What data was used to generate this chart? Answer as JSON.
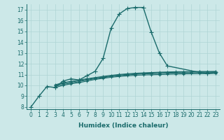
{
  "xlabel": "Humidex (Indice chaleur)",
  "bg_color": "#cce8e8",
  "line_color": "#1a6b6b",
  "xlim": [
    -0.5,
    23.5
  ],
  "ylim": [
    7.8,
    17.5
  ],
  "yticks": [
    8,
    9,
    10,
    11,
    12,
    13,
    14,
    15,
    16,
    17
  ],
  "xticks": [
    0,
    1,
    2,
    3,
    4,
    5,
    6,
    7,
    8,
    9,
    10,
    11,
    12,
    13,
    14,
    15,
    16,
    17,
    18,
    19,
    20,
    21,
    22,
    23
  ],
  "lines": [
    {
      "x": [
        0,
        1,
        2,
        3,
        4,
        5,
        6,
        7,
        8,
        9,
        10,
        11,
        12,
        13,
        14,
        15,
        16,
        17,
        21,
        22,
        23
      ],
      "y": [
        8.0,
        9.0,
        9.9,
        9.8,
        10.4,
        10.6,
        10.5,
        10.9,
        11.3,
        12.5,
        15.3,
        16.6,
        17.1,
        17.2,
        17.2,
        14.9,
        13.0,
        11.8,
        11.2,
        11.1,
        11.2
      ],
      "marker": "+",
      "markersize": 4,
      "linewidth": 1.0
    },
    {
      "x": [
        3,
        4,
        5,
        6,
        7,
        8,
        9,
        10,
        11,
        12,
        13,
        14,
        15,
        16,
        17,
        18,
        19,
        20,
        21,
        22,
        23
      ],
      "y": [
        9.8,
        10.0,
        10.15,
        10.25,
        10.4,
        10.55,
        10.65,
        10.75,
        10.82,
        10.88,
        10.93,
        10.96,
        10.98,
        11.0,
        11.02,
        11.04,
        11.06,
        11.07,
        11.08,
        11.08,
        11.1
      ],
      "marker": "+",
      "markersize": 3,
      "linewidth": 0.8
    },
    {
      "x": [
        3,
        4,
        5,
        6,
        7,
        8,
        9,
        10,
        11,
        12,
        13,
        14,
        15,
        16,
        17,
        18,
        19,
        20,
        21,
        22,
        23
      ],
      "y": [
        9.9,
        10.1,
        10.2,
        10.35,
        10.5,
        10.62,
        10.72,
        10.82,
        10.9,
        10.96,
        11.02,
        11.06,
        11.08,
        11.1,
        11.12,
        11.14,
        11.15,
        11.16,
        11.17,
        11.17,
        11.18
      ],
      "marker": "+",
      "markersize": 3,
      "linewidth": 0.8
    },
    {
      "x": [
        3,
        4,
        5,
        6,
        7,
        8,
        9,
        10,
        11,
        12,
        13,
        14,
        15,
        16,
        17,
        18,
        19,
        20,
        21,
        22,
        23
      ],
      "y": [
        10.0,
        10.2,
        10.3,
        10.42,
        10.55,
        10.67,
        10.77,
        10.87,
        10.95,
        11.02,
        11.07,
        11.11,
        11.14,
        11.17,
        11.19,
        11.21,
        11.22,
        11.23,
        11.24,
        11.24,
        11.25
      ],
      "marker": "+",
      "markersize": 3,
      "linewidth": 0.8
    },
    {
      "x": [
        3,
        4,
        5,
        6,
        7,
        8,
        9,
        10,
        11,
        12,
        13,
        14,
        15,
        16,
        17,
        18,
        19,
        20,
        21,
        22,
        23
      ],
      "y": [
        10.05,
        10.25,
        10.38,
        10.5,
        10.62,
        10.73,
        10.83,
        10.93,
        11.01,
        11.07,
        11.12,
        11.16,
        11.19,
        11.22,
        11.24,
        11.26,
        11.27,
        11.28,
        11.29,
        11.29,
        11.3
      ],
      "marker": "+",
      "markersize": 3,
      "linewidth": 0.8
    }
  ],
  "grid_color": "#afd4d4",
  "tick_fontsize": 5.5,
  "label_fontsize": 6.5
}
